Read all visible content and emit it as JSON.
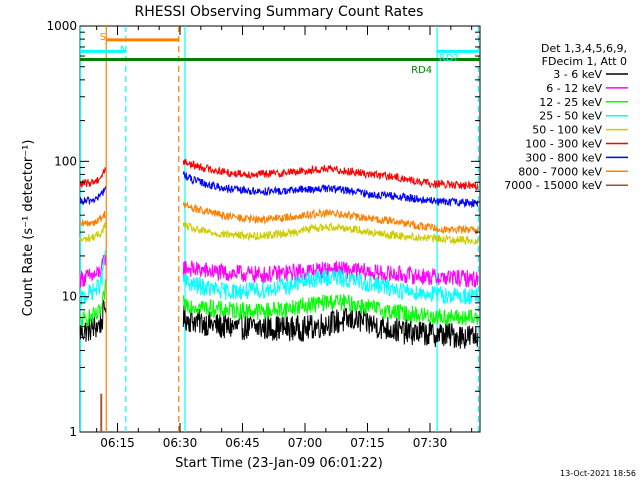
{
  "chart_data": {
    "type": "line",
    "title": "RHESSI Observing Summary Count Rates",
    "xlabel": "Start Time (23-Jan-09 06:01:22)",
    "ylabel": "Count Rate (s⁻¹ detector⁻¹)",
    "yscale": "log",
    "ylim": [
      1,
      1000
    ],
    "xlim_minutes": [
      6.0,
      102.0
    ],
    "x_ticks": [
      {
        "label": "06:15",
        "minutes": 15.0
      },
      {
        "label": "06:30",
        "minutes": 30.0
      },
      {
        "label": "06:45",
        "minutes": 45.0
      },
      {
        "label": "07:00",
        "minutes": 60.0
      },
      {
        "label": "07:15",
        "minutes": 75.0
      },
      {
        "label": "07:30",
        "minutes": 90.0
      }
    ],
    "y_ticks": [
      {
        "label": "1",
        "value": 1
      },
      {
        "label": "10",
        "value": 10
      },
      {
        "label": "100",
        "value": 100
      },
      {
        "label": "1000",
        "value": 1000
      }
    ],
    "legend_header": [
      "Det 1,3,4,5,6,9,",
      "FDecim 1, Att 0"
    ],
    "legend_position": "right",
    "series": [
      {
        "name": "3 - 6 keV",
        "color": "#000000",
        "segments": [
          {
            "x": [
              6.0,
              8.0,
              10.0,
              11.2,
              12.2
            ],
            "y": [
              5.5,
              5.7,
              6.0,
              6.5,
              9.0
            ]
          },
          {
            "x": [
              30.8,
              32,
              40,
              50,
              60,
              66,
              72,
              78,
              84,
              90,
              95,
              101.5
            ],
            "y": [
              7.0,
              6.8,
              6.0,
              5.9,
              5.8,
              6.4,
              6.8,
              6.0,
              5.5,
              5.3,
              5.2,
              5.0
            ]
          }
        ]
      },
      {
        "name": "6 - 12 keV",
        "color": "#ff00ff",
        "segments": [
          {
            "x": [
              6.0,
              8.0,
              10.0,
              11.2,
              12.2
            ],
            "y": [
              13.5,
              14.0,
              14.5,
              16.0,
              20.0
            ]
          },
          {
            "x": [
              30.8,
              34,
              40,
              50,
              56,
              62,
              67,
              72,
              78,
              84,
              90,
              95,
              101.5
            ],
            "y": [
              16.5,
              15.8,
              15.0,
              14.5,
              15.0,
              15.5,
              16.0,
              15.5,
              14.8,
              14.5,
              14.0,
              13.8,
              13.5
            ]
          }
        ]
      },
      {
        "name": "12 - 25 keV",
        "color": "#00ff00",
        "segments": [
          {
            "x": [
              6.0,
              8.0,
              10.0,
              11.2,
              12.2
            ],
            "y": [
              6.5,
              7.0,
              7.2,
              8.0,
              12.0
            ]
          },
          {
            "x": [
              30.8,
              34,
              40,
              50,
              56,
              62,
              67,
              72,
              78,
              84,
              90,
              95,
              101.5
            ],
            "y": [
              9.0,
              8.5,
              8.0,
              7.8,
              8.2,
              8.8,
              9.2,
              8.8,
              8.0,
              7.5,
              7.2,
              7.0,
              6.9
            ]
          }
        ]
      },
      {
        "name": "25 - 50 keV",
        "color": "#00ffff",
        "segments": [
          {
            "x": [
              6.0,
              8.0,
              10.0,
              11.2,
              12.2
            ],
            "y": [
              9.5,
              10.5,
              11.5,
              13.0,
              24.0
            ]
          },
          {
            "x": [
              30.8,
              34,
              40,
              48,
              56,
              62,
              67,
              72,
              78,
              84,
              90,
              95,
              101.5
            ],
            "y": [
              13.0,
              12.0,
              11.0,
              11.0,
              12.0,
              13.5,
              14.0,
              13.0,
              12.0,
              11.0,
              10.5,
              10.2,
              10.0
            ]
          }
        ]
      },
      {
        "name": "50 - 100 keV",
        "color": "#cccc00",
        "segments": [
          {
            "x": [
              6.0,
              8.0,
              10.0,
              11.2,
              12.2
            ],
            "y": [
              26.0,
              27.0,
              28.0,
              30.0,
              35.0
            ]
          },
          {
            "x": [
              30.8,
              34,
              40,
              48,
              56,
              62,
              67,
              72,
              78,
              84,
              90,
              95,
              101.5
            ],
            "y": [
              34.0,
              31.0,
              29.0,
              28.0,
              29.5,
              32.0,
              33.0,
              31.5,
              29.0,
              28.0,
              27.0,
              26.5,
              26.0
            ]
          }
        ]
      },
      {
        "name": "100 - 300 keV",
        "color": "#ff0000",
        "segments": [
          {
            "x": [
              6.0,
              8.0,
              10.0,
              11.2,
              12.2
            ],
            "y": [
              68.0,
              69.0,
              72.0,
              78.0,
              90.0
            ]
          },
          {
            "x": [
              30.8,
              33,
              37,
              42,
              48,
              54,
              60,
              65,
              70,
              76,
              82,
              88,
              94,
              101.5
            ],
            "y": [
              100.0,
              94.0,
              88.0,
              82.0,
              80.0,
              82.0,
              85.0,
              88.0,
              85.0,
              80.0,
              76.0,
              70.0,
              67.0,
              66.0
            ]
          }
        ]
      },
      {
        "name": "300 - 800 keV",
        "color": "#0000ff",
        "segments": [
          {
            "x": [
              6.0,
              8.0,
              10.0,
              11.2,
              12.2
            ],
            "y": [
              50.0,
              51.0,
              53.0,
              57.0,
              65.0
            ]
          },
          {
            "x": [
              30.8,
              33,
              37,
              42,
              48,
              54,
              60,
              65,
              70,
              76,
              82,
              88,
              94,
              101.5
            ],
            "y": [
              80.0,
              73.0,
              67.0,
              62.0,
              60.0,
              60.0,
              62.0,
              63.0,
              61.0,
              57.0,
              55.0,
              52.0,
              50.0,
              49.0
            ]
          }
        ]
      },
      {
        "name": "800 - 7000 keV",
        "color": "#ff8000",
        "segments": [
          {
            "x": [
              6.0,
              8.0,
              10.0,
              11.2,
              12.2
            ],
            "y": [
              34.0,
              35.0,
              36.0,
              38.0,
              42.0
            ]
          },
          {
            "x": [
              30.8,
              33,
              37,
              42,
              48,
              54,
              60,
              65,
              70,
              76,
              82,
              88,
              94,
              101.5
            ],
            "y": [
              48.0,
              45.0,
              42.0,
              39.0,
              37.0,
              38.0,
              40.0,
              41.5,
              40.0,
              37.5,
              36.0,
              33.0,
              31.5,
              31.0
            ]
          }
        ]
      },
      {
        "name": "7000 - 15000 keV",
        "color": "#a0522d",
        "segments": [
          {
            "x": [
              11.0,
              11.0,
              11.2,
              11.2
            ],
            "y": [
              1.0,
              1.9,
              1.9,
              1.0
            ]
          },
          {
            "x": [
              31.0,
              31.0
            ],
            "y": [
              1.0,
              1.0
            ]
          }
        ]
      }
    ],
    "vertical_lines": [
      {
        "minutes": 6.1,
        "color": "#00ffff",
        "style": "solid"
      },
      {
        "minutes": 12.3,
        "color": "#ff8000",
        "style": "solid"
      },
      {
        "minutes": 17.0,
        "color": "#00ffff",
        "style": "dashed"
      },
      {
        "minutes": 29.7,
        "color": "#ff8000",
        "style": "dashed"
      },
      {
        "minutes": 31.2,
        "color": "#00ffff",
        "style": "solid"
      },
      {
        "minutes": 91.7,
        "color": "#00ffff",
        "style": "solid"
      },
      {
        "minutes": 101.6,
        "color": "#00ffff",
        "style": "dashed"
      }
    ],
    "status_bars": [
      {
        "label": "S",
        "color": "#ff8000",
        "x_start": 12.3,
        "x_end": 29.7,
        "level": 790,
        "label_minutes": 11.5,
        "label_level": 840
      },
      {
        "label": "N",
        "color": "#00ffff",
        "x_start": 6.0,
        "x_end": 17.0,
        "level": 650,
        "label_minutes": 16.5,
        "label_level": 680
      },
      {
        "label": "RD4",
        "color": "#008000",
        "x_start": 6.0,
        "x_end": 102.0,
        "level": 565,
        "label_minutes": 88.0,
        "label_level": 480
      },
      {
        "label": "RD?",
        "color": "#00ffff",
        "x_start": 91.7,
        "x_end": 101.6,
        "level": 650,
        "label_minutes": 94.5,
        "label_level": 590
      }
    ],
    "footer_timestamp": "13-Oct-2021 18:56",
    "grid": false
  }
}
